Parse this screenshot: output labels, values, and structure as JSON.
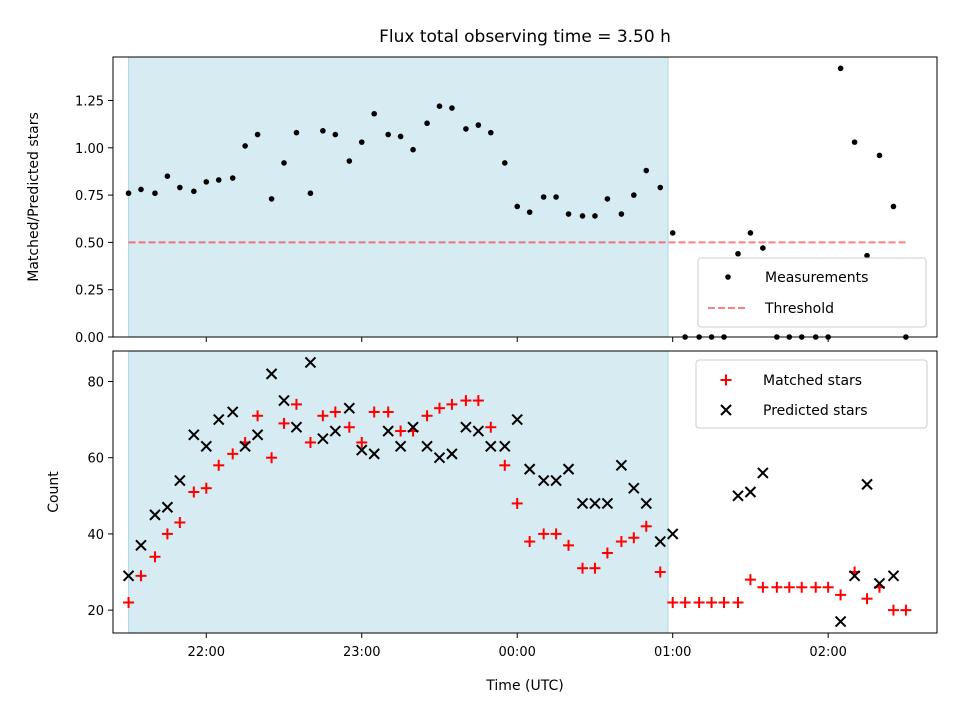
{
  "chart_data": [
    {
      "type": "scatter",
      "title": "Flux total observing time = 3.50 h",
      "xlabel": "",
      "ylabel": "Matched/Predicted stars",
      "x_unit": "time (UTC), decimal hours",
      "xlim": [
        21.4,
        26.7
      ],
      "ylim": [
        0.0,
        1.48
      ],
      "yticks": [
        0.0,
        0.25,
        0.5,
        0.75,
        1.0,
        1.25
      ],
      "ytick_labels": [
        "0.00",
        "0.25",
        "0.50",
        "0.75",
        "1.00",
        "1.25"
      ],
      "xticks": [
        22.0,
        23.0,
        24.0,
        25.0,
        26.0
      ],
      "observing_window": [
        21.5,
        24.97
      ],
      "threshold": 0.5,
      "grid": false,
      "legend": {
        "placement": "lower right",
        "entries": [
          "Measurements",
          "Threshold"
        ]
      },
      "series": [
        {
          "name": "Measurements",
          "x": [
            21.5,
            21.58,
            21.67,
            21.75,
            21.83,
            21.92,
            22.0,
            22.08,
            22.17,
            22.25,
            22.33,
            22.42,
            22.5,
            22.58,
            22.67,
            22.75,
            22.83,
            22.92,
            23.0,
            23.08,
            23.17,
            23.25,
            23.33,
            23.42,
            23.5,
            23.58,
            23.67,
            23.75,
            23.83,
            23.92,
            24.0,
            24.08,
            24.17,
            24.25,
            24.33,
            24.42,
            24.5,
            24.58,
            24.67,
            24.75,
            24.83,
            24.92,
            25.0,
            25.08,
            25.17,
            25.25,
            25.33,
            25.42,
            25.5,
            25.58,
            25.67,
            25.75,
            25.83,
            25.92,
            26.0,
            26.08,
            26.17,
            26.25,
            26.33,
            26.42,
            26.5
          ],
          "y": [
            0.76,
            0.78,
            0.76,
            0.85,
            0.79,
            0.77,
            0.82,
            0.83,
            0.84,
            1.01,
            1.07,
            0.73,
            0.92,
            1.08,
            0.76,
            1.09,
            1.07,
            0.93,
            1.03,
            1.18,
            1.07,
            1.06,
            0.99,
            1.13,
            1.22,
            1.21,
            1.1,
            1.12,
            1.08,
            0.92,
            0.69,
            0.66,
            0.74,
            0.74,
            0.65,
            0.64,
            0.64,
            0.73,
            0.65,
            0.75,
            0.88,
            0.79,
            0.55,
            0.0,
            0.0,
            0.0,
            0.0,
            0.44,
            0.55,
            0.47,
            0.0,
            0.0,
            0.0,
            0.0,
            0.0,
            1.42,
            1.03,
            0.43,
            0.96,
            0.69,
            0.0
          ]
        }
      ]
    },
    {
      "type": "scatter",
      "title": "",
      "xlabel": "Time (UTC)",
      "ylabel": "Count",
      "x_unit": "time (UTC), decimal hours",
      "xlim": [
        21.4,
        26.7
      ],
      "ylim": [
        14,
        88
      ],
      "yticks": [
        20,
        40,
        60,
        80
      ],
      "xticks": [
        22.0,
        23.0,
        24.0,
        25.0,
        26.0
      ],
      "xtick_labels": [
        "22:00",
        "23:00",
        "00:00",
        "01:00",
        "02:00"
      ],
      "observing_window": [
        21.5,
        24.97
      ],
      "grid": false,
      "legend": {
        "placement": "top right",
        "entries": [
          "Matched stars",
          "Predicted stars"
        ]
      },
      "series": [
        {
          "name": "Matched stars",
          "x": [
            21.5,
            21.58,
            21.67,
            21.75,
            21.83,
            21.92,
            22.0,
            22.08,
            22.17,
            22.25,
            22.33,
            22.42,
            22.5,
            22.58,
            22.67,
            22.75,
            22.83,
            22.92,
            23.0,
            23.08,
            23.17,
            23.25,
            23.33,
            23.42,
            23.5,
            23.58,
            23.67,
            23.75,
            23.83,
            23.92,
            24.0,
            24.08,
            24.17,
            24.25,
            24.33,
            24.42,
            24.5,
            24.58,
            24.67,
            24.75,
            24.83,
            24.92,
            25.0,
            25.08,
            25.17,
            25.25,
            25.33,
            25.42,
            25.5,
            25.58,
            25.67,
            25.75,
            25.83,
            25.92,
            26.0,
            26.08,
            26.17,
            26.25,
            26.33,
            26.42,
            26.5
          ],
          "y": [
            22,
            29,
            34,
            40,
            43,
            51,
            52,
            58,
            61,
            64,
            71,
            60,
            69,
            74,
            64,
            71,
            72,
            68,
            64,
            72,
            72,
            67,
            67,
            71,
            73,
            74,
            75,
            75,
            68,
            58,
            48,
            38,
            40,
            40,
            37,
            31,
            31,
            35,
            38,
            39,
            42,
            30,
            22,
            22,
            22,
            22,
            22,
            22,
            28,
            26,
            26,
            26,
            26,
            26,
            26,
            24,
            30,
            23,
            26,
            20,
            20
          ]
        },
        {
          "name": "Predicted stars",
          "x": [
            21.5,
            21.58,
            21.67,
            21.75,
            21.83,
            21.92,
            22.0,
            22.08,
            22.17,
            22.25,
            22.33,
            22.42,
            22.5,
            22.58,
            22.67,
            22.75,
            22.83,
            22.92,
            23.0,
            23.08,
            23.17,
            23.25,
            23.33,
            23.42,
            23.5,
            23.58,
            23.67,
            23.75,
            23.83,
            23.92,
            24.0,
            24.08,
            24.17,
            24.25,
            24.33,
            24.42,
            24.5,
            24.58,
            24.67,
            24.75,
            24.83,
            24.92,
            25.0,
            25.42,
            25.5,
            25.58,
            26.08,
            26.17,
            26.25,
            26.33,
            26.42
          ],
          "y": [
            29,
            37,
            45,
            47,
            54,
            66,
            63,
            70,
            72,
            63,
            66,
            82,
            75,
            68,
            85,
            65,
            67,
            73,
            62,
            61,
            67,
            63,
            68,
            63,
            60,
            61,
            68,
            67,
            63,
            63,
            70,
            57,
            54,
            54,
            57,
            48,
            48,
            48,
            58,
            52,
            48,
            38,
            40,
            50,
            51,
            56,
            17,
            29,
            53,
            27,
            29
          ]
        }
      ]
    }
  ]
}
